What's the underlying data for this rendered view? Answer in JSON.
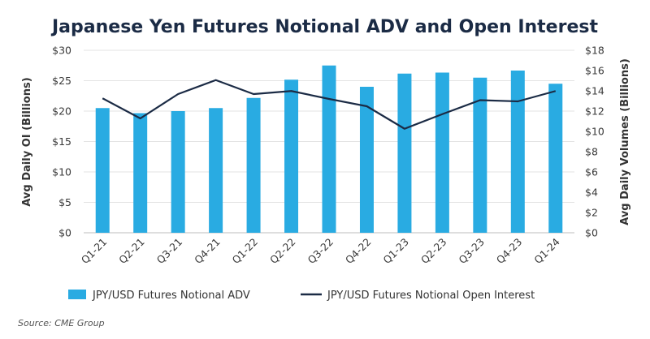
{
  "chart_data": {
    "type": "bar",
    "title": "Japanese Yen Futures Notional ADV and Open Interest",
    "categories": [
      "Q1-21",
      "Q2-21",
      "Q3-21",
      "Q4-21",
      "Q1-22",
      "Q2-22",
      "Q3-22",
      "Q4-22",
      "Q1-23",
      "Q2-23",
      "Q3-23",
      "Q4-23",
      "Q1-24"
    ],
    "series": [
      {
        "name": "JPY/USD Futures Notional ADV",
        "type": "bar",
        "axis": "right",
        "color": "#29abe2",
        "values": [
          12.3,
          11.8,
          12.0,
          12.3,
          13.3,
          15.1,
          16.5,
          14.4,
          15.7,
          15.8,
          15.3,
          16.0,
          14.7
        ]
      },
      {
        "name": "JPY/USD Futures Notional Open Interest",
        "type": "line",
        "axis": "left",
        "color": "#1b2b45",
        "values": [
          22.1,
          18.8,
          22.8,
          25.1,
          22.8,
          23.3,
          22.0,
          20.8,
          17.1,
          19.5,
          21.8,
          21.6,
          23.3
        ]
      }
    ],
    "ylabel_left": "Avg Daily OI (Billions)",
    "ylabel_right": "Avg Daily Volumes (Billions)",
    "ylim_left": [
      0,
      30
    ],
    "ylim_right": [
      0,
      18
    ],
    "yticks_left": [
      "$0",
      "$5",
      "$10",
      "$15",
      "$20",
      "$25",
      "$30"
    ],
    "yticks_right": [
      "$0",
      "$2",
      "$4",
      "$6",
      "$8",
      "$10",
      "$12",
      "$14",
      "$16",
      "$18"
    ],
    "grid": true,
    "legend_position": "bottom"
  },
  "source": "Source: CME Group"
}
